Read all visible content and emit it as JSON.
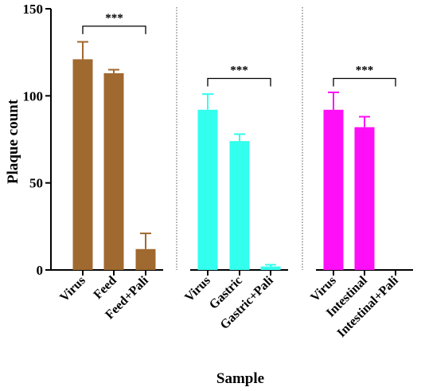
{
  "chart_data": {
    "type": "bar",
    "xlabel": "Sample",
    "ylabel": "Plaque count",
    "ylim": [
      0,
      150
    ],
    "yticks": [
      0,
      50,
      100,
      150
    ],
    "groups": [
      {
        "color": "#a0692f",
        "bars": [
          {
            "category": "Virus",
            "value": 121,
            "error": 10
          },
          {
            "category": "Feed",
            "value": 113,
            "error": 2
          },
          {
            "category": "Feed+Pali",
            "value": 12,
            "error": 9
          }
        ],
        "significance": {
          "from": 0,
          "to": 2,
          "y": 140,
          "label": "***"
        }
      },
      {
        "color": "#33ffee",
        "bars": [
          {
            "category": "Virus",
            "value": 92,
            "error": 9
          },
          {
            "category": "Gastric",
            "value": 74,
            "error": 4
          },
          {
            "category": "Gastric+Pali",
            "value": 2,
            "error": 1
          }
        ],
        "significance": {
          "from": 0,
          "to": 2,
          "y": 110,
          "label": "***"
        }
      },
      {
        "color": "#ff0ff7",
        "bars": [
          {
            "category": "Virus",
            "value": 92,
            "error": 10
          },
          {
            "category": "Intestinal",
            "value": 82,
            "error": 6
          },
          {
            "category": "Intestinal+Pali",
            "value": 0,
            "error": 0
          }
        ],
        "significance": {
          "from": 0,
          "to": 2,
          "y": 110,
          "label": "***"
        }
      }
    ],
    "separators": "dotted vertical lines between groups",
    "grid": false,
    "legend": "none"
  }
}
